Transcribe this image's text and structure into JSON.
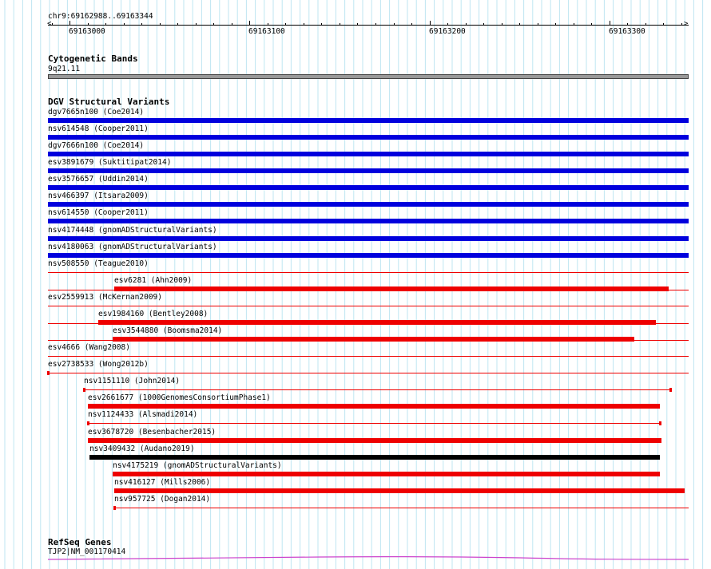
{
  "location": "chr9:69162988..69163344",
  "ruler": {
    "start": 69162988,
    "end": 69163344,
    "ticks": [
      "69163000",
      "69163100",
      "69163200",
      "69163300"
    ]
  },
  "tracks": {
    "cyto": {
      "title": "Cytogenetic Bands",
      "band": "9q21.11"
    },
    "dgv": {
      "title": "DGV Structural Variants",
      "features": [
        {
          "label": "dgv7665n100 (Coe2014)",
          "start": 69162988,
          "end": 69163344,
          "color": "#0000dd",
          "kind": "bar"
        },
        {
          "label": "nsv614548 (Cooper2011)",
          "start": 69162988,
          "end": 69163344,
          "color": "#0000dd",
          "kind": "bar"
        },
        {
          "label": "dgv7666n100 (Coe2014)",
          "start": 69162988,
          "end": 69163344,
          "color": "#0000dd",
          "kind": "bar"
        },
        {
          "label": "esv3891679 (Suktitipat2014)",
          "start": 69162988,
          "end": 69163344,
          "color": "#0000dd",
          "kind": "bar"
        },
        {
          "label": "esv3576657 (Uddin2014)",
          "start": 69162988,
          "end": 69163344,
          "color": "#0000dd",
          "kind": "bar"
        },
        {
          "label": "nsv466397 (Itsara2009)",
          "start": 69162988,
          "end": 69163344,
          "color": "#0000dd",
          "kind": "bar"
        },
        {
          "label": "nsv614550 (Cooper2011)",
          "start": 69162988,
          "end": 69163344,
          "color": "#0000dd",
          "kind": "bar"
        },
        {
          "label": "nsv4174448 (gnomADStructuralVariants)",
          "start": 69162988,
          "end": 69163344,
          "color": "#0000dd",
          "kind": "bar"
        },
        {
          "label": "nsv4180063 (gnomADStructuralVariants)",
          "start": 69162988,
          "end": 69163344,
          "color": "#0000dd",
          "kind": "bar"
        },
        {
          "label": "nsv508550 (Teague2010)",
          "start": 69162988,
          "end": 69163344,
          "color": "#ee0000",
          "kind": "line"
        },
        {
          "label": "esv6281 (Ahn2009)",
          "start": 69163025,
          "end": 69163333,
          "color": "#ee0000",
          "kind": "bar",
          "lineStart": 69162988,
          "lineEnd": 69163344
        },
        {
          "label": "esv2559913 (McKernan2009)",
          "start": 69162988,
          "end": 69163344,
          "color": "#ee0000",
          "kind": "line"
        },
        {
          "label": "esv1984160 (Bentley2008)",
          "start": 69163016,
          "end": 69163326,
          "color": "#ee0000",
          "kind": "bar",
          "lineStart": 69162988,
          "lineEnd": 69163344
        },
        {
          "label": "esv3544880 (Boomsma2014)",
          "start": 69163024,
          "end": 69163314,
          "color": "#ee0000",
          "kind": "bar",
          "lineStart": 69162988,
          "lineEnd": 69163344
        },
        {
          "label": "esv4666 (Wang2008)",
          "start": 69162988,
          "end": 69163344,
          "color": "#ee0000",
          "kind": "line"
        },
        {
          "label": "esv2738533 (Wong2012b)",
          "start": 69162988,
          "end": 69163344,
          "color": "#ee0000",
          "kind": "line",
          "mark": 69162988
        },
        {
          "label": "nsv1151110 (John2014)",
          "start": 69163008,
          "end": 69163334,
          "color": "#ee0000",
          "kind": "line",
          "endcaps": true
        },
        {
          "label": "esv2661677 (1000GenomesConsortiumPhase1)",
          "start": 69163010,
          "end": 69163328,
          "color": "#ee0000",
          "kind": "bar"
        },
        {
          "label": "nsv1124433 (Alsmadi2014)",
          "start": 69163010,
          "end": 69163328,
          "color": "#ee0000",
          "kind": "line",
          "endcaps": true
        },
        {
          "label": "esv3678720 (Besenbacher2015)",
          "start": 69163010,
          "end": 69163329,
          "color": "#ee0000",
          "kind": "bar"
        },
        {
          "label": "nsv3409432 (Audano2019)",
          "start": 69163011,
          "end": 69163328,
          "color": "#000000",
          "kind": "bar"
        },
        {
          "label": "nsv4175219 (gnomADStructuralVariants)",
          "start": 69163024,
          "end": 69163328,
          "color": "#ee0000",
          "kind": "bar"
        },
        {
          "label": "nsv416127 (Mills2006)",
          "start": 69163025,
          "end": 69163342,
          "color": "#ee0000",
          "kind": "bar"
        },
        {
          "label": "nsv957725 (Dogan2014)",
          "start": 69163025,
          "end": 69163344,
          "color": "#ee0000",
          "kind": "line",
          "startcap": true
        }
      ]
    },
    "refseq": {
      "title": "RefSeq Genes",
      "gene": "TJP2|NM_001170414",
      "color": "#cc44cc"
    }
  }
}
